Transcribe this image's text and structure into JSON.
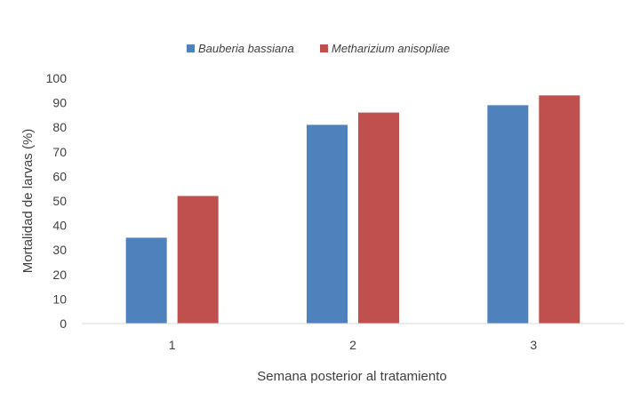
{
  "chart_data": {
    "type": "bar",
    "title": "",
    "categories": [
      "1",
      "2",
      "3"
    ],
    "series": [
      {
        "name": "Bauberia bassiana",
        "values": [
          35,
          81,
          89
        ],
        "color": "#4f81bd"
      },
      {
        "name": "Metharizium anisopliae",
        "values": [
          52,
          86,
          93
        ],
        "color": "#c0504d"
      }
    ],
    "xlabel": "Semana posterior al tratamiento",
    "ylabel": "Mortalidad de larvas (%)",
    "ylim": [
      0,
      100
    ],
    "yticks": [
      0,
      10,
      20,
      30,
      40,
      50,
      60,
      70,
      80,
      90,
      100
    ],
    "grid": false,
    "legend_position": "top-center"
  }
}
